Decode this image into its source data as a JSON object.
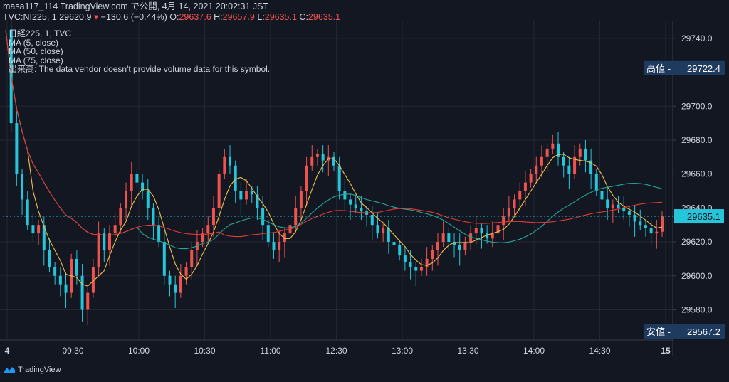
{
  "header": {
    "line1": "masa117_114 TradingView.com で公開, 4月 14, 2021 20:02:31 JST",
    "symbol": "TVC:NI225, 1",
    "last": "29620.9",
    "change": "−130.6 (−0.44%)",
    "o_label": "O:",
    "o_value": "29637.6",
    "h_label": "H:",
    "h_value": "29657.9",
    "l_label": "L:",
    "l_value": "29635.1",
    "c_label": "C:",
    "c_value": "29635.1"
  },
  "legend": {
    "title": "日経225, 1, TVC",
    "ma5": "MA (5, close)",
    "ma50": "MA (50, close)",
    "ma75": "MA (75, close)",
    "volume": "出来高: The data vendor doesn't provide volume data for this symbol."
  },
  "footer": {
    "brand": "TradingView"
  },
  "colors": {
    "background": "#131722",
    "up": "#ef5350",
    "down": "#26c6da",
    "ma5": "#f2c14e",
    "ma50": "#26a69a",
    "ma75": "#e53935",
    "price_tag": "#1e3a5f"
  },
  "chart_data": {
    "type": "candlestick",
    "ylim": [
      29563,
      29750
    ],
    "y_ticks": [
      "29740.0",
      "29700.0",
      "29680.0",
      "29660.0",
      "29640.0",
      "29620.0",
      "29600.0",
      "29580.0"
    ],
    "y_tick_values": [
      29740,
      29700,
      29680,
      29660,
      29640,
      29620,
      29600,
      29580
    ],
    "x_ticks": [
      "4",
      "09:30",
      "10:00",
      "10:30",
      "11:00",
      "12:30",
      "13:00",
      "13:30",
      "14:00",
      "14:30",
      "15"
    ],
    "labels": {
      "high_label": "高値",
      "high_value": "29722.4",
      "low_label": "安値",
      "low_value": "29567.2",
      "last_value": "29635.1"
    },
    "label_values": {
      "high": 29722.4,
      "low": 29567.2,
      "last": 29635.1
    },
    "close": [
      29745,
      29690,
      29660,
      29645,
      29630,
      29625,
      29630,
      29615,
      29605,
      29600,
      29595,
      29590,
      29610,
      29600,
      29580,
      29590,
      29605,
      29625,
      29615,
      29625,
      29630,
      29640,
      29650,
      29660,
      29655,
      29650,
      29640,
      29630,
      29620,
      29600,
      29595,
      29590,
      29600,
      29605,
      29615,
      29620,
      29625,
      29630,
      29640,
      29660,
      29670,
      29665,
      29650,
      29645,
      29650,
      29648,
      29640,
      29630,
      29620,
      29615,
      29620,
      29625,
      29630,
      29640,
      29650,
      29665,
      29670,
      29672,
      29668,
      29670,
      29665,
      29650,
      29645,
      29642,
      29640,
      29638,
      29636,
      29630,
      29625,
      29628,
      29620,
      29618,
      29612,
      29608,
      29605,
      29603,
      29605,
      29610,
      29615,
      29620,
      29625,
      29620,
      29618,
      29615,
      29620,
      29625,
      29628,
      29625,
      29622,
      29625,
      29630,
      29635,
      29640,
      29645,
      29650,
      29655,
      29660,
      29665,
      29670,
      29675,
      29678,
      29670,
      29665,
      29660,
      29670,
      29675,
      29668,
      29660,
      29650,
      29645,
      29640,
      29642,
      29640,
      29638,
      29636,
      29632,
      29630,
      29628,
      29625,
      29626,
      29635
    ]
  }
}
